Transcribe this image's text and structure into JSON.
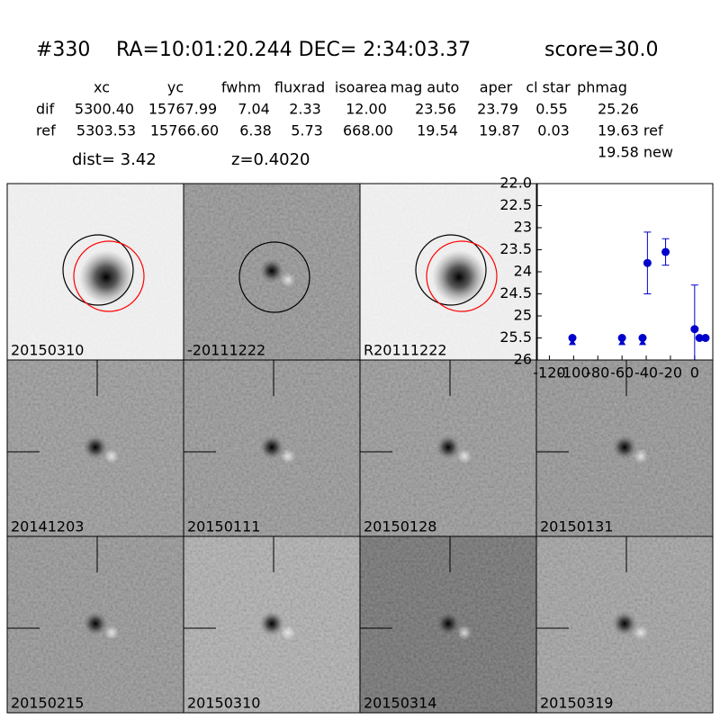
{
  "header": {
    "id": "#330",
    "coords": "RA=10:01:20.244 DEC= 2:34:03.37",
    "score": "score=30.0"
  },
  "table": {
    "columns": [
      "xc",
      "yc",
      "fwhm",
      "fluxrad",
      "isoarea",
      "mag auto",
      "aper",
      "cl star",
      "phmag"
    ],
    "rows": [
      [
        "dif",
        "5300.40",
        "15767.99",
        "7.04",
        "2.33",
        "12.00",
        "23.56",
        "23.79",
        "0.55",
        "25.26"
      ],
      [
        "ref",
        "5303.53",
        "15766.60",
        "6.38",
        "5.73",
        "668.00",
        "19.54",
        "19.87",
        "0.03",
        "19.63 ref"
      ]
    ],
    "extra": "19.58 new"
  },
  "info": {
    "dist": "dist=  3.42",
    "z": "z=0.4020"
  },
  "panels": [
    {
      "label": "20150310"
    },
    {
      "label": "-20111222"
    },
    {
      "label": "R20111222"
    },
    {
      "label": "20141203"
    },
    {
      "label": "20150111"
    },
    {
      "label": "20150128"
    },
    {
      "label": "20150131"
    },
    {
      "label": "20150215"
    },
    {
      "label": "20150310",
      "label_color": "#ff0000"
    },
    {
      "label": "20150314"
    },
    {
      "label": "20150319"
    }
  ],
  "chart_data": {
    "type": "scatter",
    "y_inverted": true,
    "xlim": [
      -130,
      15
    ],
    "ylim": [
      22,
      26
    ],
    "xticks": [
      -120,
      -100,
      -80,
      -60,
      -40,
      -20,
      0
    ],
    "yticks": [
      {
        "value": 22,
        "label": "22.0"
      },
      22.5,
      23,
      23.5,
      24,
      24.5,
      25,
      25.5,
      26
    ],
    "series": [
      {
        "color": "#0000cc",
        "marker": "circle",
        "x": [
          -101,
          -60,
          -43,
          -39,
          -24,
          0,
          4,
          9
        ],
        "values": [
          25.5,
          25.5,
          25.5,
          23.8,
          23.55,
          25.3,
          25.5,
          25.5
        ],
        "errors": [
          null,
          null,
          null,
          0.7,
          0.3,
          1.0,
          null,
          null
        ]
      },
      {
        "color": "#0000cc",
        "marker": "triangle",
        "x": [
          -101,
          -60,
          -43
        ],
        "values": [
          25.6,
          25.6,
          25.6
        ]
      }
    ]
  }
}
